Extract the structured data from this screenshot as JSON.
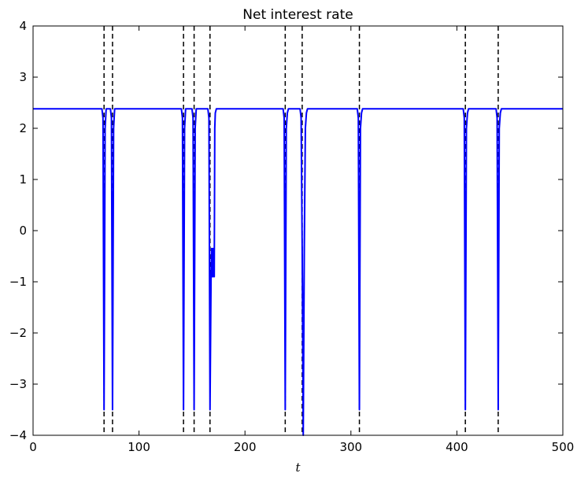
{
  "chart_data": {
    "type": "line",
    "title": "Net interest rate",
    "xlabel": "t",
    "ylabel": "",
    "xlim": [
      0,
      500
    ],
    "ylim": [
      -4,
      4
    ],
    "xticks": [
      0,
      100,
      200,
      300,
      400,
      500
    ],
    "yticks": [
      -4,
      -3,
      -2,
      -1,
      0,
      1,
      2,
      3,
      4
    ],
    "grid": false,
    "line_color": "#0000ff",
    "vline_color": "#000000",
    "vline_style": "dashed",
    "baseline": 2.38,
    "vlines": [
      67,
      75,
      142,
      152,
      167,
      238,
      254,
      308,
      408,
      439
    ],
    "series": [
      {
        "x": [
          0,
          65,
          66,
          67,
          68,
          69,
          70,
          71,
          73,
          74,
          75,
          76,
          77,
          78,
          79,
          140,
          141,
          142,
          143,
          144,
          145,
          146,
          150,
          151,
          152,
          153,
          154,
          155,
          156,
          165,
          166,
          167,
          168,
          168.5,
          169,
          169.5,
          170,
          170.5,
          171,
          171.5,
          172,
          173,
          174,
          236,
          237,
          238,
          239,
          240,
          241,
          242,
          252,
          253,
          254,
          255,
          256,
          257,
          258,
          259,
          260,
          306,
          307,
          308,
          309,
          310,
          311,
          406,
          407,
          408,
          409,
          410,
          411,
          437,
          438,
          439,
          440,
          441,
          442,
          500
        ],
        "y": [
          2.38,
          2.38,
          2.2,
          -3.5,
          2.0,
          2.38,
          2.38,
          2.38,
          2.38,
          2.2,
          -3.5,
          2.0,
          2.38,
          2.38,
          2.38,
          2.38,
          2.2,
          -3.5,
          2.0,
          2.38,
          2.38,
          2.38,
          2.38,
          2.2,
          -3.5,
          2.0,
          2.38,
          2.38,
          2.38,
          2.38,
          2.2,
          -3.5,
          -0.9,
          -0.35,
          -0.9,
          -0.35,
          -0.9,
          -0.35,
          -0.9,
          2.0,
          2.3,
          2.38,
          2.38,
          2.38,
          2.2,
          -3.5,
          2.0,
          2.3,
          2.38,
          2.38,
          2.38,
          2.2,
          -0.35,
          -4.0,
          -0.35,
          2.0,
          2.3,
          2.38,
          2.38,
          2.38,
          2.2,
          -3.5,
          2.0,
          2.3,
          2.38,
          2.38,
          2.2,
          -3.5,
          2.0,
          2.3,
          2.38,
          2.38,
          2.2,
          -3.5,
          2.0,
          2.3,
          2.38,
          2.38
        ]
      }
    ]
  }
}
